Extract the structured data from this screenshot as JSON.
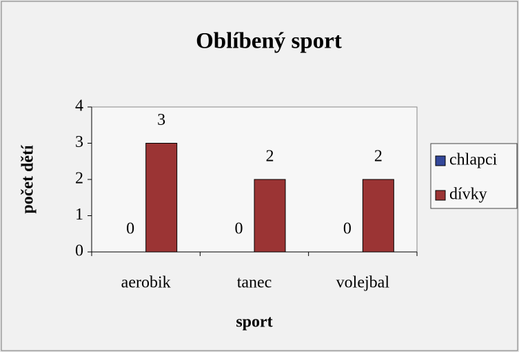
{
  "chart_data": {
    "type": "bar",
    "title": "Oblíbený sport",
    "x_label": "sport",
    "y_label": "počet dětí",
    "categories": [
      "aerobik",
      "tanec",
      "volejbal"
    ],
    "series": [
      {
        "name": "chlapci",
        "color": "#34489a",
        "values": [
          0,
          0,
          0
        ]
      },
      {
        "name": "dívky",
        "color": "#9b3434",
        "values": [
          3,
          2,
          2
        ]
      }
    ],
    "ylim": [
      0,
      4
    ],
    "yticks": [
      0,
      1,
      2,
      3,
      4
    ],
    "legend": "right",
    "data_labels": true
  }
}
